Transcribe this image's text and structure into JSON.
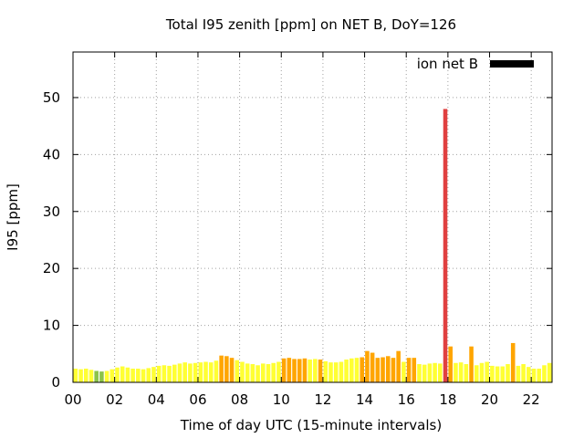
{
  "chart_data": {
    "type": "bar",
    "title": "Total I95 zenith [ppm] on NET B, DoY=126",
    "xlabel": "Time of day UTC (15-minute intervals)",
    "ylabel": "I95 [ppm]",
    "xlim": [
      0,
      23
    ],
    "ylim": [
      0,
      58
    ],
    "x_ticks": [
      0,
      2,
      4,
      6,
      8,
      10,
      12,
      14,
      16,
      18,
      20,
      22
    ],
    "x_tick_labels": [
      "00",
      "02",
      "04",
      "06",
      "08",
      "10",
      "12",
      "14",
      "16",
      "18",
      "20",
      "22"
    ],
    "y_ticks": [
      0,
      10,
      20,
      30,
      40,
      50
    ],
    "y_tick_labels": [
      "0",
      "10",
      "20",
      "30",
      "40",
      "50"
    ],
    "grid": true,
    "legend": {
      "label": "ion net B",
      "placement": "top-right",
      "color": "#000000"
    },
    "bar_width_hours": 0.2,
    "colors": {
      "green": "#8bc34a",
      "yellow": "#ffff33",
      "orange": "#ffa500",
      "red": "#e04040"
    },
    "x": [
      0.125,
      0.375,
      0.625,
      0.875,
      1.125,
      1.375,
      1.625,
      1.875,
      2.125,
      2.375,
      2.625,
      2.875,
      3.125,
      3.375,
      3.625,
      3.875,
      4.125,
      4.375,
      4.625,
      4.875,
      5.125,
      5.375,
      5.625,
      5.875,
      6.125,
      6.375,
      6.625,
      6.875,
      7.125,
      7.375,
      7.625,
      7.875,
      8.125,
      8.375,
      8.625,
      8.875,
      9.125,
      9.375,
      9.625,
      9.875,
      10.125,
      10.375,
      10.625,
      10.875,
      11.125,
      11.375,
      11.625,
      11.875,
      12.125,
      12.375,
      12.625,
      12.875,
      13.125,
      13.375,
      13.625,
      13.875,
      14.125,
      14.375,
      14.625,
      14.875,
      15.125,
      15.375,
      15.625,
      15.875,
      16.125,
      16.375,
      16.625,
      16.875,
      17.125,
      17.375,
      17.625,
      17.875,
      18.125,
      18.375,
      18.625,
      18.875,
      19.125,
      19.375,
      19.625,
      19.875,
      20.125,
      20.375,
      20.625,
      20.875,
      21.125,
      21.375,
      21.625,
      21.875,
      22.125,
      22.375,
      22.625,
      22.875
    ],
    "values": [
      2.4,
      2.3,
      2.4,
      2.2,
      2.0,
      1.9,
      2.0,
      2.3,
      2.6,
      2.8,
      2.6,
      2.4,
      2.4,
      2.3,
      2.5,
      2.7,
      2.9,
      3.0,
      2.9,
      3.1,
      3.3,
      3.5,
      3.3,
      3.4,
      3.5,
      3.6,
      3.5,
      3.8,
      4.7,
      4.6,
      4.3,
      3.9,
      3.6,
      3.3,
      3.2,
      3.0,
      3.3,
      3.2,
      3.4,
      3.6,
      4.2,
      4.3,
      4.1,
      4.1,
      4.2,
      4.0,
      4.1,
      4.0,
      3.7,
      3.5,
      3.5,
      3.6,
      4.0,
      4.2,
      4.3,
      4.4,
      5.5,
      5.2,
      4.3,
      4.4,
      4.6,
      4.3,
      5.5,
      3.6,
      4.3,
      4.3,
      3.2,
      3.1,
      3.3,
      3.4,
      3.3,
      48.0,
      6.3,
      3.4,
      3.5,
      3.2,
      6.3,
      3.0,
      3.4,
      3.6,
      2.9,
      2.8,
      2.8,
      3.2,
      6.9,
      2.9,
      3.2,
      2.7,
      2.4,
      2.4,
      3.0,
      3.4
    ],
    "bar_colors": [
      "yellow",
      "yellow",
      "yellow",
      "yellow",
      "green",
      "green",
      "yellow",
      "yellow",
      "yellow",
      "yellow",
      "yellow",
      "yellow",
      "yellow",
      "yellow",
      "yellow",
      "yellow",
      "yellow",
      "yellow",
      "yellow",
      "yellow",
      "yellow",
      "yellow",
      "yellow",
      "yellow",
      "yellow",
      "yellow",
      "yellow",
      "yellow",
      "orange",
      "orange",
      "orange",
      "yellow",
      "yellow",
      "yellow",
      "yellow",
      "yellow",
      "yellow",
      "yellow",
      "yellow",
      "yellow",
      "orange",
      "orange",
      "orange",
      "orange",
      "orange",
      "yellow",
      "yellow",
      "orange",
      "yellow",
      "yellow",
      "yellow",
      "yellow",
      "yellow",
      "yellow",
      "yellow",
      "orange",
      "orange",
      "orange",
      "orange",
      "orange",
      "orange",
      "orange",
      "orange",
      "yellow",
      "orange",
      "orange",
      "yellow",
      "yellow",
      "yellow",
      "yellow",
      "yellow",
      "red",
      "orange",
      "yellow",
      "yellow",
      "yellow",
      "orange",
      "yellow",
      "yellow",
      "yellow",
      "yellow",
      "yellow",
      "yellow",
      "yellow",
      "orange",
      "yellow",
      "yellow",
      "yellow",
      "yellow",
      "yellow",
      "yellow",
      "yellow"
    ]
  }
}
